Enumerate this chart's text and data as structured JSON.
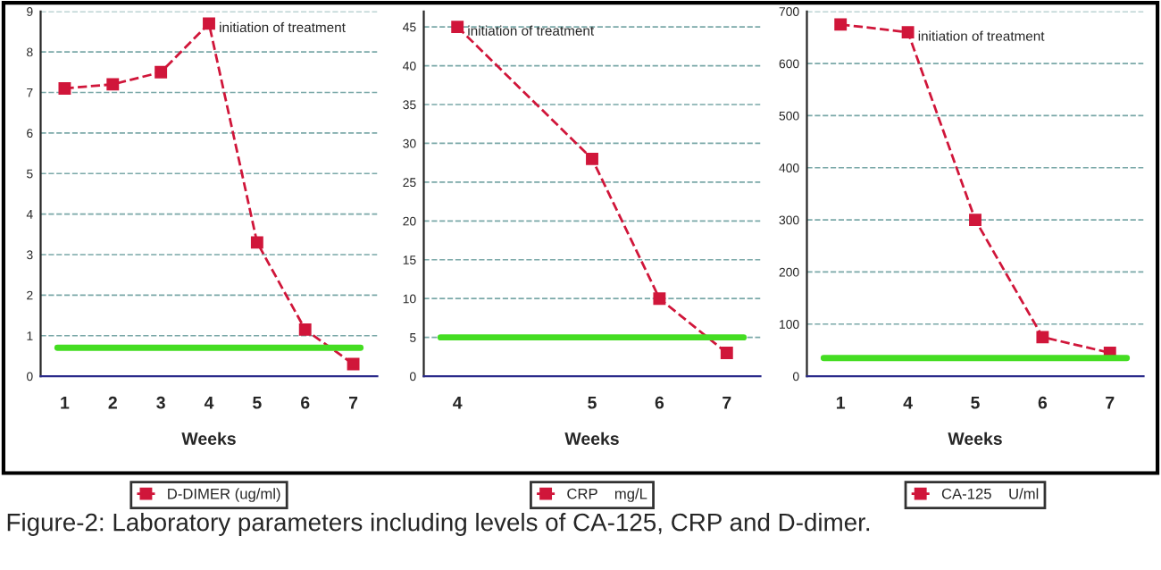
{
  "chart_data": [
    {
      "type": "line",
      "xlabel": "Weeks",
      "categories": [
        "1",
        "2",
        "3",
        "4",
        "5",
        "6",
        "7"
      ],
      "series": [
        {
          "name": "D-DIMER (ug/ml)",
          "color": "#d0163a",
          "values": [
            7.1,
            7.2,
            7.5,
            8.7,
            3.3,
            1.15,
            0.3
          ]
        }
      ],
      "ylim": [
        0,
        9
      ],
      "yticks": [
        0,
        1,
        2,
        3,
        4,
        5,
        6,
        7,
        8,
        9
      ],
      "grid": "y",
      "legend": "bottom",
      "marker": "square",
      "line_style": "dashed",
      "ref_lines": [
        {
          "axis": "y",
          "value": 0.7,
          "color": "#44dd22"
        }
      ],
      "annotations": [
        {
          "text": "initiation of treatment",
          "x": "4",
          "y": 8.7
        }
      ]
    },
    {
      "type": "line",
      "xlabel": "Weeks",
      "categories": [
        "4",
        null,
        "5",
        "6",
        "7"
      ],
      "series": [
        {
          "name": "CRP    mg/L",
          "color": "#d0163a",
          "values": [
            45,
            null,
            28,
            10,
            3
          ]
        }
      ],
      "ylim": [
        0,
        47
      ],
      "yticks": [
        0,
        5,
        10,
        15,
        20,
        25,
        30,
        35,
        40,
        45
      ],
      "grid": "y",
      "legend": "bottom",
      "marker": "square",
      "line_style": "dashed",
      "ref_lines": [
        {
          "axis": "y",
          "value": 5,
          "color": "#44dd22"
        }
      ],
      "annotations": [
        {
          "text": "initiation of treatment",
          "x": "4",
          "y": 45
        }
      ]
    },
    {
      "type": "line",
      "xlabel": "Weeks",
      "categories": [
        "1",
        "4",
        "5",
        "6",
        "7"
      ],
      "series": [
        {
          "name": "CA-125    U/ml",
          "color": "#d0163a",
          "values": [
            675,
            660,
            300,
            75,
            45
          ]
        }
      ],
      "ylim": [
        0,
        700
      ],
      "yticks": [
        0,
        100,
        200,
        300,
        400,
        500,
        600,
        700
      ],
      "grid": "y",
      "legend": "bottom",
      "marker": "square",
      "line_style": "dashed",
      "ref_lines": [
        {
          "axis": "y",
          "value": 35,
          "color": "#44dd22"
        }
      ],
      "annotations": [
        {
          "text": "initiation of treatment",
          "x": "4",
          "y": 660
        },
        "Figure-2: Laboratory parameters including levels of CA-125, CRP and D-dimer."
      ]
    }
  ]
}
